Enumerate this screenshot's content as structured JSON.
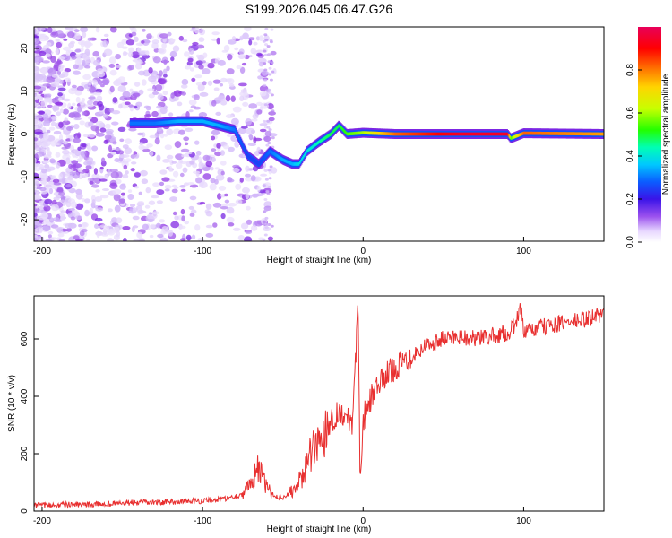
{
  "figure": {
    "title": "S199.2026.045.06.47.G26"
  },
  "colors": {
    "snr_line": "#e83030",
    "ridge_core": "#e8202a",
    "background": "#ffffff"
  },
  "chart_data": [
    {
      "type": "heatmap",
      "name": "spectrogram",
      "title": "",
      "xlabel": "Height of straight line (km)",
      "ylabel": "Frequency (Hz)",
      "xlim": [
        -205,
        150
      ],
      "ylim": [
        -25,
        25
      ],
      "x_ticks": [
        -200,
        -100,
        0,
        100
      ],
      "y_ticks": [
        -20,
        -10,
        0,
        10,
        20
      ],
      "colorbar": {
        "label": "Normalized spectral amplitude",
        "range": [
          0.0,
          1.0
        ],
        "ticks": [
          0.0,
          0.2,
          0.4,
          0.6,
          0.8
        ],
        "colormap": [
          "#ffffff",
          "#c8a8f8",
          "#8a2be2",
          "#3a14e8",
          "#0b5cff",
          "#00c8ff",
          "#00ffb4",
          "#22ff00",
          "#c8ff00",
          "#ffd400",
          "#ff7a00",
          "#ff0000",
          "#e8005a"
        ]
      },
      "ridge": {
        "x": [
          -145,
          -130,
          -115,
          -100,
          -90,
          -80,
          -72,
          -65,
          -58,
          -50,
          -44,
          -40,
          -35,
          -28,
          -20,
          -15,
          -10,
          0,
          20,
          60,
          90,
          92,
          100,
          150
        ],
        "y": [
          2.5,
          2.5,
          3,
          3,
          2,
          1,
          -5,
          -7,
          -4,
          -6,
          -7,
          -7,
          -4,
          -2,
          0,
          2,
          0,
          0.3,
          0,
          0,
          0,
          -1,
          0.2,
          0
        ],
        "amplitude": [
          0.35,
          0.35,
          0.4,
          0.4,
          0.4,
          0.35,
          0.3,
          0.3,
          0.35,
          0.4,
          0.4,
          0.45,
          0.45,
          0.5,
          0.55,
          0.55,
          0.6,
          0.65,
          0.85,
          0.95,
          0.95,
          0.6,
          0.85,
          0.8
        ]
      }
    },
    {
      "type": "line",
      "name": "snr",
      "title": "",
      "xlabel": "Height of straight line (km)",
      "ylabel": "SNR (10 * v/v)",
      "xlim": [
        -205,
        150
      ],
      "ylim": [
        0,
        750
      ],
      "x_ticks": [
        -200,
        -100,
        0,
        100
      ],
      "y_ticks": [
        0,
        200,
        400,
        600
      ],
      "series": [
        {
          "name": "SNR",
          "x": [
            -205,
            -190,
            -175,
            -160,
            -150,
            -140,
            -130,
            -120,
            -110,
            -100,
            -95,
            -90,
            -85,
            -80,
            -75,
            -70,
            -66,
            -63,
            -60,
            -57,
            -54,
            -50,
            -46,
            -42,
            -38,
            -34,
            -30,
            -26,
            -22,
            -18,
            -14,
            -10,
            -7,
            -5,
            -3,
            -2,
            -1,
            0,
            2,
            5,
            10,
            15,
            20,
            25,
            30,
            35,
            40,
            50,
            60,
            70,
            80,
            90,
            95,
            98,
            100,
            110,
            120,
            130,
            140,
            150
          ],
          "y": [
            20,
            22,
            22,
            25,
            28,
            30,
            30,
            32,
            35,
            35,
            40,
            40,
            45,
            50,
            60,
            90,
            160,
            120,
            80,
            60,
            50,
            50,
            60,
            80,
            120,
            180,
            220,
            260,
            300,
            330,
            350,
            320,
            300,
            500,
            720,
            150,
            200,
            260,
            320,
            400,
            440,
            480,
            500,
            520,
            540,
            560,
            580,
            600,
            610,
            600,
            610,
            620,
            650,
            720,
            620,
            640,
            650,
            660,
            670,
            690
          ]
        }
      ]
    }
  ]
}
